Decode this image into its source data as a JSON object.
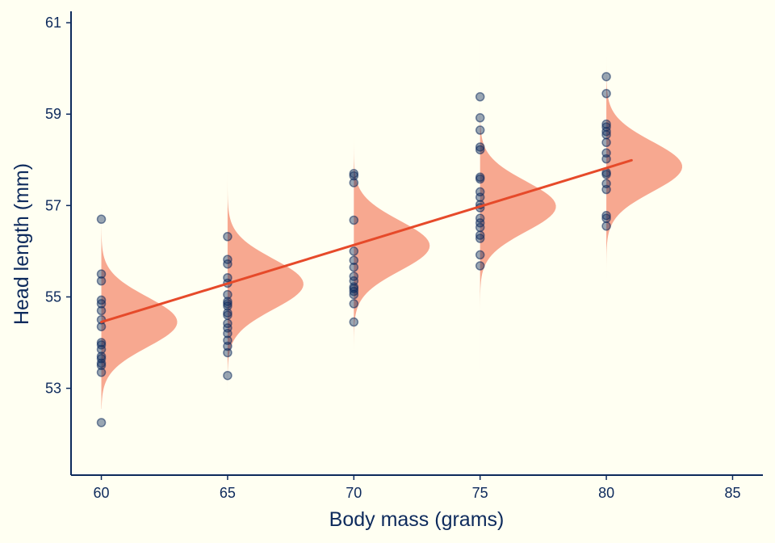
{
  "chart_data": {
    "type": "scatter",
    "xlabel": "Body mass (grams)",
    "ylabel": "Head length (mm)",
    "xlim": [
      58.8,
      86.2
    ],
    "ylim": [
      51.1,
      61.25
    ],
    "xticks": [
      60,
      65,
      70,
      75,
      80,
      85
    ],
    "yticks": [
      53,
      55,
      57,
      59,
      61
    ],
    "grid": false,
    "colors": {
      "background": "#fffff2",
      "axis": "#0d2a5c",
      "points": "#0d2a5c",
      "density": "#f7a890",
      "regression": "#e64a2a"
    },
    "points": [
      {
        "x": 60,
        "y": [
          56.7,
          55.5,
          55.35,
          54.93,
          54.85,
          54.7,
          54.5,
          54.35,
          54.0,
          53.95,
          53.85,
          53.7,
          53.65,
          53.55,
          53.5,
          53.35,
          52.25
        ]
      },
      {
        "x": 65,
        "y": [
          56.32,
          55.82,
          55.72,
          55.42,
          55.3,
          55.05,
          54.9,
          54.85,
          54.8,
          54.65,
          54.6,
          54.42,
          54.32,
          54.2,
          54.05,
          53.92,
          53.78,
          53.28
        ]
      },
      {
        "x": 70,
        "y": [
          57.7,
          57.65,
          57.5,
          56.68,
          56.0,
          55.8,
          55.65,
          55.45,
          55.35,
          55.22,
          55.18,
          55.12,
          55.05,
          54.85,
          54.45
        ]
      },
      {
        "x": 75,
        "y": [
          59.38,
          58.92,
          58.65,
          58.28,
          58.22,
          57.62,
          57.58,
          57.3,
          57.18,
          57.02,
          56.95,
          56.72,
          56.62,
          56.52,
          56.35,
          56.28,
          55.92,
          55.68
        ]
      },
      {
        "x": 80,
        "y": [
          59.82,
          59.45,
          58.78,
          58.72,
          58.62,
          58.55,
          58.38,
          58.15,
          58.02,
          57.72,
          57.68,
          57.48,
          57.35,
          56.78,
          56.72,
          56.55
        ]
      }
    ],
    "regression": {
      "x": [
        60,
        81
      ],
      "y": [
        54.45,
        57.99
      ]
    },
    "densities": [
      {
        "x": 60,
        "mean": 54.45,
        "sd": 0.55,
        "ymin": 52.55,
        "ymax": 58.3
      },
      {
        "x": 65,
        "mean": 55.28,
        "sd": 0.55,
        "ymin": 52.6,
        "ymax": 59.0
      },
      {
        "x": 70,
        "mean": 56.12,
        "sd": 0.55,
        "ymin": 52.9,
        "ymax": 59.8
      },
      {
        "x": 75,
        "mean": 56.98,
        "sd": 0.55,
        "ymin": 53.4,
        "ymax": 60.6
      },
      {
        "x": 80,
        "mean": 57.85,
        "sd": 0.55,
        "ymin": 54.2,
        "ymax": 60.8
      }
    ]
  }
}
